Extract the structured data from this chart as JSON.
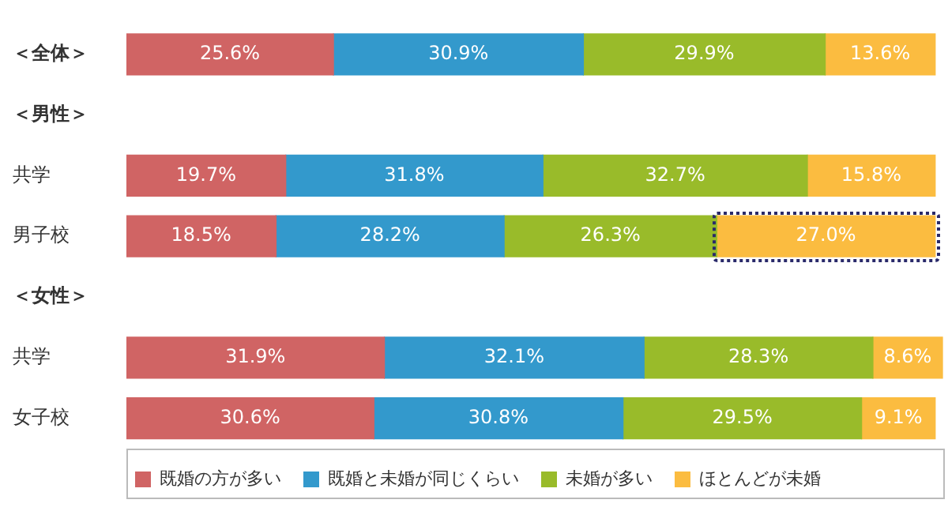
{
  "chart_data": {
    "type": "bar",
    "orientation": "horizontal",
    "stacked": true,
    "categories": [
      "＜全体＞",
      "＜男性＞",
      "共学",
      "男子校",
      "＜女性＞",
      "共学",
      "女子校"
    ],
    "xlim": [
      0,
      101
    ],
    "tick_labels": "y",
    "legend": "bottom",
    "series": [
      {
        "name": "既婚の方が多い",
        "color": "#d06464",
        "values": [
          25.6,
          null,
          19.7,
          18.5,
          null,
          31.9,
          30.6
        ],
        "value_labels": [
          "25.6%",
          null,
          "19.7%",
          "18.5%",
          null,
          "31.9%",
          "30.6%"
        ]
      },
      {
        "name": "既婚と未婚が同じくらい",
        "color": "#3399cc",
        "values": [
          30.9,
          null,
          31.8,
          28.2,
          null,
          32.1,
          30.8
        ],
        "value_labels": [
          "30.9%",
          null,
          "31.8%",
          "28.2%",
          null,
          "32.1%",
          "30.8%"
        ]
      },
      {
        "name": "未婚が多い",
        "color": "#99bb2a",
        "values": [
          29.9,
          null,
          32.7,
          26.3,
          null,
          28.3,
          29.5
        ],
        "value_labels": [
          "29.9%",
          null,
          "32.7%",
          "26.3%",
          null,
          "28.3%",
          "29.5%"
        ]
      },
      {
        "name": "ほとんどが未婚",
        "color": "#fbbc40",
        "values": [
          13.6,
          null,
          15.8,
          27.0,
          null,
          8.6,
          9.1
        ],
        "value_labels": [
          "13.6%",
          null,
          "15.8%",
          "27.0%",
          null,
          "8.6%",
          "9.1%"
        ]
      }
    ]
  }
}
